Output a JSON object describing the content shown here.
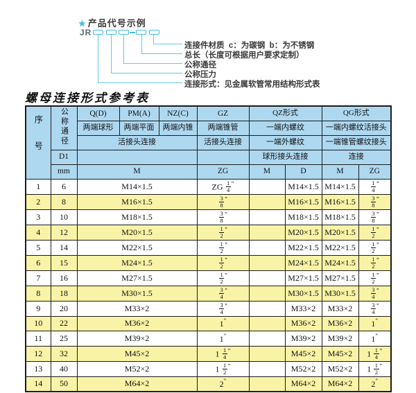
{
  "diagram": {
    "star": "★",
    "heading": "产品代号示例",
    "code_prefix": "JR",
    "labels": [
      "连接件材质  c：为碳钢  b：为不锈钢",
      "总长（长度可根据用户要求定制）",
      "公称通径",
      "公称压力",
      "连接形式：见金属软管常用结构形式表"
    ]
  },
  "table": {
    "title": "螺母连接形式参考表",
    "header": {
      "seq": "序号",
      "dn": "公称通径",
      "d1": "D1",
      "mm": "mm",
      "q": "Q(D)",
      "pm": "PM(A)",
      "nz": "NZ(C)",
      "gz": "GZ",
      "qz": "QZ形式",
      "qg": "QG形式",
      "q_desc": "两端球形",
      "pm_desc": "两端平面",
      "nz_desc": "两端内锥",
      "gz_desc": "两端锥管",
      "qz_row2": "一端内螺纹",
      "qg_row2": "一端内螺纹活接头",
      "union_conn": "活接头连接",
      "gz_conn": "活接头连接",
      "qz_row3": "一端外螺纹",
      "qg_row3": "一端锥管螺纹接头",
      "qz_row4": "球形接头连接",
      "qg_row4": "连接",
      "m": "M",
      "zg": "ZG",
      "qz_m": "M",
      "qz_d": "D",
      "qg_m": "M",
      "qg_zg": "ZG"
    },
    "rows": [
      {
        "seq": "1",
        "dn": "6",
        "m": "M14×1.5",
        "gz": "ZG 1/4\"",
        "qz_m": "",
        "qz_d": "M14×1.5",
        "qg_m": "M14×1.5",
        "qg_zg": "1/4\""
      },
      {
        "seq": "2",
        "dn": "8",
        "m": "M16×1.5",
        "gz": "3/8\"",
        "qz_m": "",
        "qz_d": "M16×1.5",
        "qg_m": "M16×1.5",
        "qg_zg": "3/8\""
      },
      {
        "seq": "3",
        "dn": "10",
        "m": "M18×1.5",
        "gz": "3/8\"",
        "qz_m": "",
        "qz_d": "M18×1.5",
        "qg_m": "M18×1.5",
        "qg_zg": "3/8\""
      },
      {
        "seq": "4",
        "dn": "12",
        "m": "M20×1.5",
        "gz": "1/2\"",
        "qz_m": "",
        "qz_d": "M20×1.5",
        "qg_m": "M20×1.5",
        "qg_zg": "1/2\""
      },
      {
        "seq": "5",
        "dn": "14",
        "m": "M22×1.5",
        "gz": "1/2\"",
        "qz_m": "",
        "qz_d": "M22×1.5",
        "qg_m": "M22×1.5",
        "qg_zg": "1/2\""
      },
      {
        "seq": "6",
        "dn": "15",
        "m": "M24×1.5",
        "gz": "1/2\"",
        "qz_m": "",
        "qz_d": "M24×1.5",
        "qg_m": "M24×1.5",
        "qg_zg": "1/2\""
      },
      {
        "seq": "7",
        "dn": "16",
        "m": "M27×1.5",
        "gz": "1/2\"",
        "qz_m": "",
        "qz_d": "M27×1.5",
        "qg_m": "M27×1.5",
        "qg_zg": "1/2\""
      },
      {
        "seq": "8",
        "dn": "18",
        "m": "M30×1.5",
        "gz": "3/4\"",
        "qz_m": "",
        "qz_d": "M30×1.5",
        "qg_m": "M30×1.5",
        "qg_zg": "3/4\""
      },
      {
        "seq": "9",
        "dn": "20",
        "m": "M33×2",
        "gz": "3/4\"",
        "qz_m": "",
        "qz_d": "M33×2",
        "qg_m": "M33×2",
        "qg_zg": "3/4\""
      },
      {
        "seq": "10",
        "dn": "22",
        "m": "M36×2",
        "gz": "1\"",
        "qz_m": "",
        "qz_d": "M36×2",
        "qg_m": "M36×2",
        "qg_zg": "1\""
      },
      {
        "seq": "11",
        "dn": "25",
        "m": "M39×2",
        "gz": "1\"",
        "qz_m": "",
        "qz_d": "M39×2",
        "qg_m": "M39×2",
        "qg_zg": "1\""
      },
      {
        "seq": "12",
        "dn": "32",
        "m": "M45×2",
        "gz": "1 1/4\"",
        "qz_m": "",
        "qz_d": "M45×2",
        "qg_m": "M45×2",
        "qg_zg": "1 1/4\""
      },
      {
        "seq": "13",
        "dn": "40",
        "m": "M52×2",
        "gz": "1 1/2\"",
        "qz_m": "",
        "qz_d": "M52×2",
        "qg_m": "M52×2",
        "qg_zg": "1 1/2\""
      },
      {
        "seq": "14",
        "dn": "50",
        "m": "M64×2",
        "gz": "2\"",
        "qz_m": "",
        "qz_d": "M64×2",
        "qg_m": "M64×2",
        "qg_zg": "2\""
      }
    ],
    "colors": {
      "header_bg": "#aed8f0",
      "row_alt_bg": "#f8f3a6",
      "row_bg": "#ffffff",
      "border": "#1b1b1b",
      "accent_cyan": "#3fbce0",
      "accent_line": "#5fc9e6"
    }
  }
}
